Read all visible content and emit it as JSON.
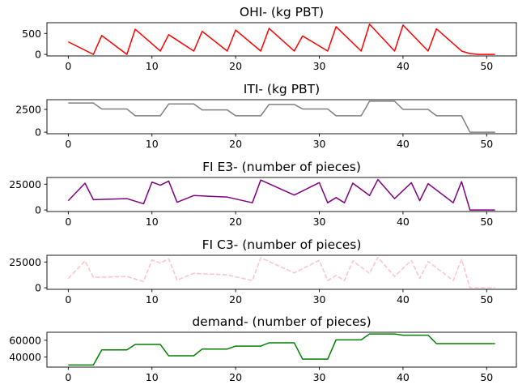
{
  "chart_data": [
    {
      "type": "line",
      "title": "OHI- (kg PBT)",
      "color": "#ff0000",
      "dash": "solid",
      "xlim": [
        -2.55,
        53.55
      ],
      "ylim": [
        -36,
        756
      ],
      "xticks": [
        0,
        10,
        20,
        30,
        40,
        50
      ],
      "yticks": [
        0,
        500
      ],
      "x": [
        0,
        3,
        4,
        7,
        8,
        11,
        12,
        15,
        16,
        19,
        20,
        23,
        24,
        27,
        28,
        31,
        32,
        35,
        36,
        39,
        40,
        43,
        44,
        47,
        48,
        49,
        50,
        51
      ],
      "y": [
        300,
        0,
        450,
        0,
        600,
        80,
        470,
        80,
        550,
        80,
        580,
        80,
        620,
        80,
        440,
        80,
        660,
        80,
        720,
        80,
        700,
        80,
        610,
        80,
        20,
        0,
        0,
        0
      ]
    },
    {
      "type": "line",
      "title": "ITI- (kg PBT)",
      "color": "#808080",
      "dash": "solid",
      "xlim": [
        -2.55,
        53.55
      ],
      "ylim": [
        -170,
        3570
      ],
      "xticks": [
        0,
        10,
        20,
        30,
        40,
        50
      ],
      "yticks": [
        0,
        2500
      ],
      "x": [
        0,
        3,
        4,
        7,
        8,
        11,
        12,
        15,
        16,
        19,
        20,
        23,
        24,
        27,
        28,
        31,
        32,
        35,
        36,
        39,
        40,
        43,
        44,
        47,
        48,
        51
      ],
      "y": [
        3200,
        3200,
        2550,
        2550,
        1800,
        1800,
        3100,
        3100,
        2450,
        2450,
        1800,
        1800,
        3050,
        3050,
        2550,
        2550,
        1800,
        1800,
        3400,
        3400,
        2500,
        2500,
        1800,
        1800,
        0,
        0
      ]
    },
    {
      "type": "line",
      "title": "FI E3- (number of pieces)",
      "color": "#800080",
      "dash": "solid",
      "xlim": [
        -2.55,
        53.55
      ],
      "ylim": [
        -1500,
        31500
      ],
      "xticks": [
        0,
        10,
        20,
        30,
        40,
        50
      ],
      "yticks": [
        0,
        25000
      ],
      "x": [
        0,
        2,
        3,
        7,
        9,
        10,
        11,
        12,
        13,
        15,
        19,
        22,
        23,
        27,
        30,
        31,
        32,
        33,
        34,
        36,
        37,
        39,
        41,
        42,
        43,
        46,
        47,
        48,
        51
      ],
      "y": [
        9000,
        26000,
        10000,
        11000,
        6000,
        27000,
        24000,
        28000,
        7500,
        14000,
        12500,
        7000,
        29000,
        14500,
        26500,
        7000,
        12000,
        7000,
        26000,
        14000,
        29500,
        11000,
        26500,
        9000,
        25500,
        7000,
        27500,
        0,
        0
      ]
    },
    {
      "type": "line",
      "title": "FI C3- (number of pieces)",
      "color": "#ffc0cb",
      "dash": "dashed",
      "xlim": [
        -2.55,
        53.55
      ],
      "ylim": [
        -1500,
        31500
      ],
      "xticks": [
        0,
        10,
        20,
        30,
        40,
        50
      ],
      "yticks": [
        0,
        25000
      ],
      "x": [
        0,
        2,
        3,
        7,
        9,
        10,
        11,
        12,
        13,
        15,
        19,
        22,
        23,
        27,
        30,
        31,
        32,
        33,
        34,
        36,
        37,
        39,
        41,
        42,
        43,
        46,
        47,
        48,
        51
      ],
      "y": [
        9000,
        26000,
        10000,
        11000,
        6000,
        27000,
        24000,
        28000,
        7500,
        14000,
        12500,
        7000,
        29000,
        14500,
        26500,
        7000,
        12000,
        7000,
        26000,
        14000,
        29500,
        11000,
        26500,
        9000,
        25500,
        7000,
        27500,
        0,
        0
      ]
    },
    {
      "type": "line",
      "title": "demand- (number of pieces)",
      "color": "#008000",
      "dash": "solid",
      "xlim": [
        -2.55,
        53.55
      ],
      "ylim": [
        28000,
        69500
      ],
      "xticks": [
        0,
        10,
        20,
        30,
        40,
        50
      ],
      "yticks": [
        40000,
        60000
      ],
      "x": [
        0,
        3,
        4,
        7,
        8,
        11,
        12,
        15,
        16,
        19,
        20,
        23,
        24,
        27,
        28,
        31,
        32,
        35,
        36,
        39,
        40,
        43,
        44,
        47,
        48,
        51
      ],
      "y": [
        30500,
        30500,
        48500,
        48500,
        55000,
        55000,
        41500,
        41500,
        49500,
        49500,
        53000,
        53000,
        57000,
        57000,
        37500,
        37500,
        60500,
        60500,
        67500,
        67500,
        66000,
        66000,
        56000,
        56000,
        56000,
        56000
      ]
    }
  ]
}
